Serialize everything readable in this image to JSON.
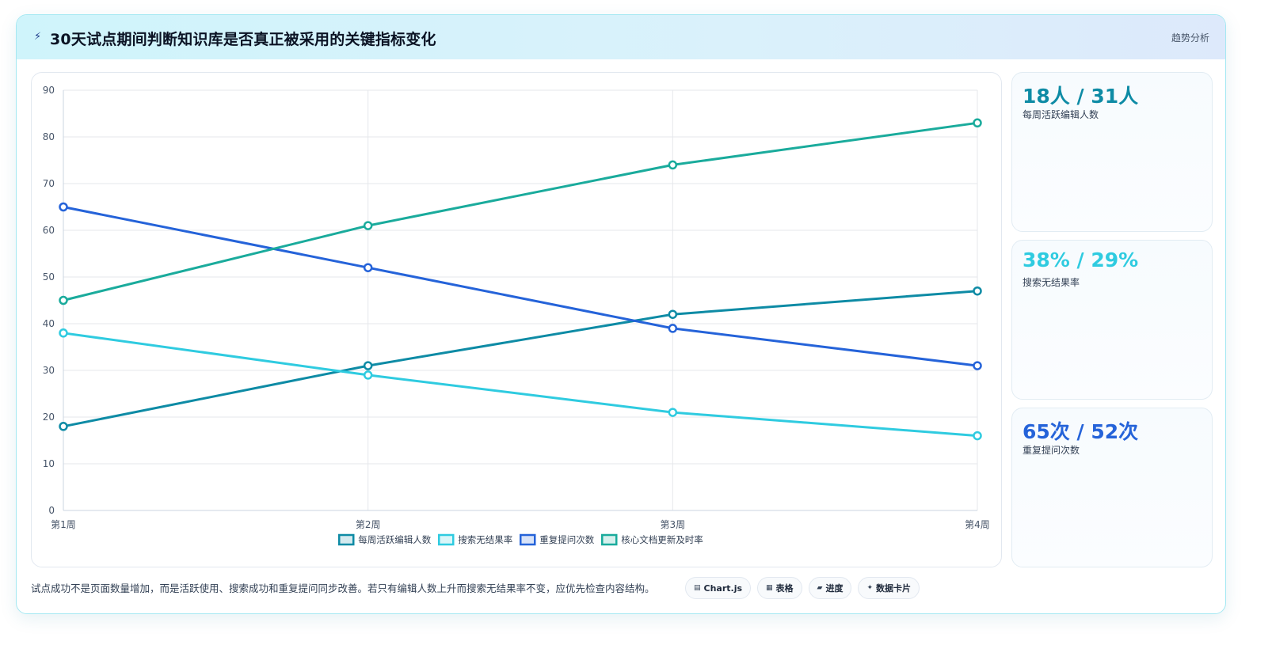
{
  "header": {
    "icon": "bolt-icon",
    "title": "30天试点期间判断知识库是否真正被采用的关键指标变化",
    "tag": "趋势分析"
  },
  "kpis": [
    {
      "value": "18人 / 31人",
      "label": "每周活跃编辑人数",
      "color": "#0e8ba5"
    },
    {
      "value": "38% / 29%",
      "label": "搜索无结果率",
      "color": "#2fcbe0"
    },
    {
      "value": "65次 / 52次",
      "label": "重复提问次数",
      "color": "#2563d9"
    }
  ],
  "footer": {
    "note": "试点成功不是页面数量增加，而是活跃使用、搜索成功和重复提问同步改善。若只有编辑人数上升而搜索无结果率不变，应优先检查内容结构。",
    "pills": [
      {
        "icon": "chart-icon",
        "glyph": "▤",
        "label": "Chart.js"
      },
      {
        "icon": "table-icon",
        "glyph": "▦",
        "label": "表格"
      },
      {
        "icon": "progress-icon",
        "glyph": "▰",
        "label": "进度"
      },
      {
        "icon": "card-icon",
        "glyph": "✦",
        "label": "数据卡片"
      }
    ]
  },
  "chart_data": {
    "type": "line",
    "categories": [
      "第1周",
      "第2周",
      "第3周",
      "第4周"
    ],
    "ylim": [
      0,
      90
    ],
    "yticks": [
      0,
      10,
      20,
      30,
      40,
      50,
      60,
      70,
      80,
      90
    ],
    "grid": true,
    "legend_position": "bottom",
    "series": [
      {
        "name": "每周活跃编辑人数",
        "values": [
          18,
          31,
          42,
          47
        ],
        "color": "#0e8ba5"
      },
      {
        "name": "搜索无结果率",
        "values": [
          38,
          29,
          21,
          16
        ],
        "color": "#2fcbe0"
      },
      {
        "name": "重复提问次数",
        "values": [
          65,
          52,
          39,
          31
        ],
        "color": "#2563d9"
      },
      {
        "name": "核心文档更新及时率",
        "values": [
          45,
          61,
          74,
          83
        ],
        "color": "#1aab9c"
      }
    ]
  }
}
